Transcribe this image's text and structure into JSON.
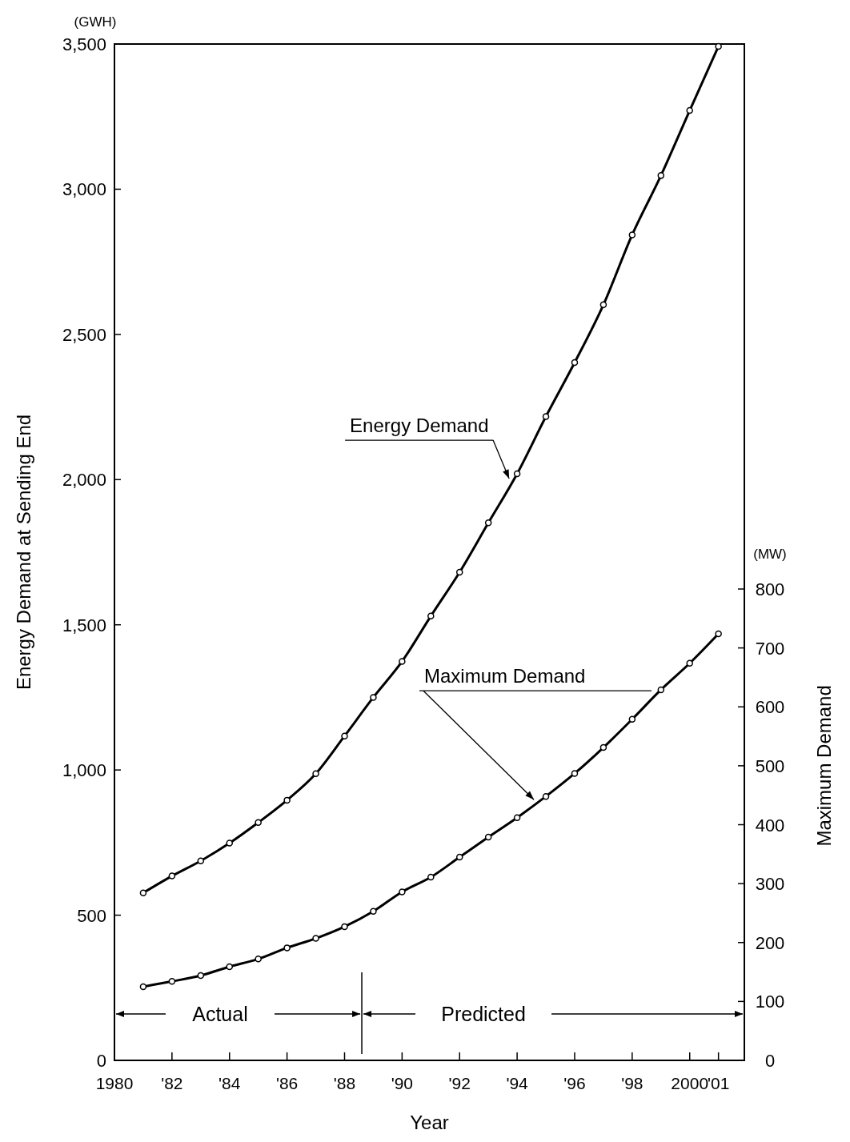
{
  "chart_data": {
    "type": "line",
    "xlabel": "Year",
    "ylabel": "Energy Demand at Sending End",
    "y2label": "Maximum Demand",
    "x": [
      1981,
      1982,
      1983,
      1984,
      1985,
      1986,
      1987,
      1988,
      1989,
      1990,
      1991,
      1992,
      1993,
      1994,
      1995,
      1996,
      1997,
      1998,
      1999,
      2000,
      2001
    ],
    "series": [
      {
        "name": "Energy Demand",
        "color": "#000000",
        "values": [
          577,
          635,
          687,
          748,
          819,
          896,
          987,
          1117,
          1250,
          1374,
          1530,
          1681,
          1851,
          2020,
          2217,
          2403,
          2602,
          2843,
          3047,
          3271,
          3492
        ]
      },
      {
        "name": "Maximum Demand",
        "color": "#000000",
        "axis": "y2",
        "values": [
          125,
          134,
          144,
          159,
          172,
          191,
          207,
          227,
          253,
          286,
          311,
          345,
          379,
          412,
          448,
          487,
          531,
          579,
          629,
          674,
          724
        ]
      }
    ],
    "xlim": [
      1980,
      2001.9
    ],
    "xticks": [
      1980,
      {
        "value": 1982,
        "label": "'82"
      },
      {
        "value": 1984,
        "label": "'84"
      },
      {
        "value": 1986,
        "label": "'86"
      },
      {
        "value": 1988,
        "label": "'88"
      },
      {
        "value": 1990,
        "label": "'90"
      },
      {
        "value": 1992,
        "label": "'92"
      },
      {
        "value": 1994,
        "label": "'94"
      },
      {
        "value": 1996,
        "label": "'96"
      },
      {
        "value": 1998,
        "label": "'98"
      },
      2000,
      {
        "value": 2001,
        "label": "'01"
      }
    ],
    "ylim": [
      0,
      3500
    ],
    "yticks": [
      0,
      500,
      {
        "value": 1000,
        "label": "1,000"
      },
      {
        "value": 1500,
        "label": "1,500"
      },
      {
        "value": 2000,
        "label": "2,000"
      },
      {
        "value": 2500,
        "label": "2,500"
      },
      {
        "value": 3000,
        "label": "3,000"
      },
      {
        "value": 3500,
        "label": "3,500"
      }
    ],
    "y2lim": [
      0,
      1725
    ],
    "y2ticks": [
      0,
      100,
      200,
      300,
      400,
      500,
      600,
      700,
      800
    ],
    "ref_lines": [
      {
        "axis": "x",
        "value": 1988.6
      }
    ],
    "annotations": [
      "(GWH)",
      "(MW)",
      "Actual",
      "Predicted"
    ],
    "marker": "circle",
    "line_style": "solid",
    "grid": false,
    "legend": false
  }
}
